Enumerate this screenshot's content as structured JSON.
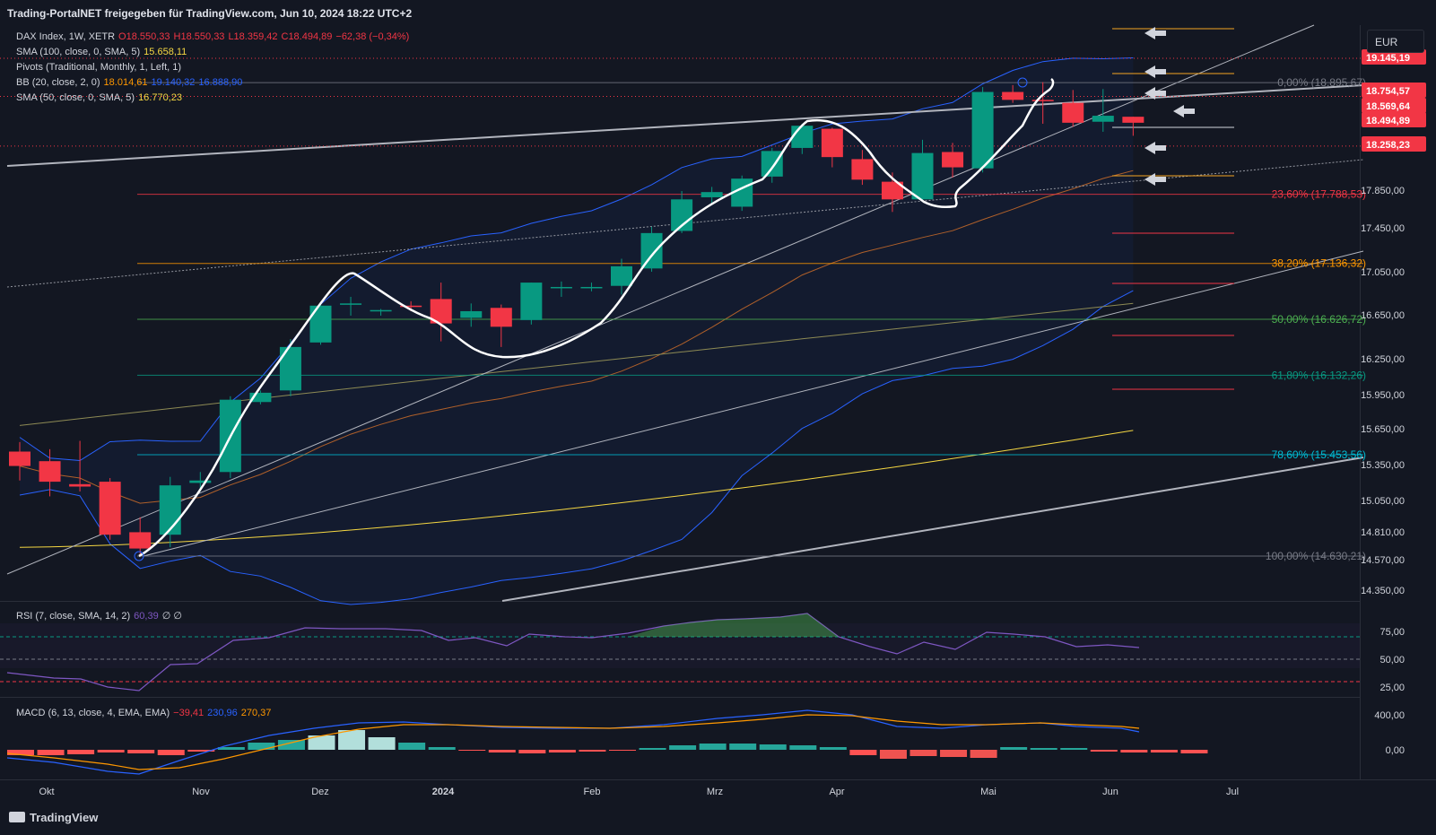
{
  "header": {
    "title": "Trading-PortalNET freigegeben für TradingView.com, Jun 10, 2024 18:22 UTC+2"
  },
  "currency": "EUR",
  "brand": "TradingView",
  "legend": {
    "main": {
      "name": "DAX Index, 1W, XETR",
      "o": "O18.550,33",
      "h": "H18.550,33",
      "l": "L18.359,42",
      "c": "C18.494,89",
      "chg": "−62,38 (−0,34%)"
    },
    "sma100": {
      "name": "SMA (100, close, 0, SMA, 5)",
      "value": "15.658,11"
    },
    "pivots": {
      "name": "Pivots (Traditional, Monthly, 1, Left, 1)"
    },
    "bb": {
      "name": "BB (20, close, 2, 0)",
      "v1": "18.014,61",
      "v2": "19.140,32",
      "v3": "16.888,90"
    },
    "sma50": {
      "name": "SMA (50, close, 0, SMA, 5)",
      "value": "16.770,23"
    }
  },
  "rsi_legend": {
    "name": "RSI (7, close, SMA, 14, 2)",
    "value": "60,39",
    "extra": "∅  ∅"
  },
  "macd_legend": {
    "name": "MACD (6, 13, close, 4, EMA, EMA)",
    "v1": "−39,41",
    "v2": "230,96",
    "v3": "270,37"
  },
  "colors": {
    "up": "#089981",
    "down": "#f23645",
    "bg": "#131722",
    "sma100": "#f5d742",
    "bb": "#2962ff",
    "sma50": "#f5d742",
    "fib": "#c9c9c9"
  },
  "chart_data": {
    "type": "candlestick",
    "x_axis": {
      "ticks": [
        "Okt",
        "Nov",
        "Dez",
        "2024",
        "Feb",
        "Mrz",
        "Apr",
        "Mai",
        "Jun",
        "Jul"
      ]
    },
    "y_axis": {
      "ticks": [
        "17.850,00",
        "17.450,00",
        "17.050,00",
        "16.650,00",
        "16.250,00",
        "15.950,00",
        "15.650,00",
        "15.350,00",
        "15.050,00",
        "14.810,00",
        "14.570,00",
        "14.350,00"
      ]
    },
    "price_labels": [
      {
        "value": 19145.19,
        "text": "19.145,19",
        "color": "#f23645"
      },
      {
        "value": 18754.57,
        "text": "18.754,57",
        "color": "#f23645"
      },
      {
        "value": 18569.64,
        "text": "18.569,64",
        "color": "#f23645"
      },
      {
        "value": 18494.89,
        "text": "18.494,89",
        "color": "#f23645"
      },
      {
        "value": 18258.23,
        "text": "18.258,23",
        "color": "#f23645"
      }
    ],
    "fib_levels": [
      {
        "value": 18895.67,
        "text": "0,00% (18.895,67)",
        "color": "#787b86"
      },
      {
        "value": 17788.53,
        "text": "23,60% (17.788,53)",
        "color": "#f23645"
      },
      {
        "value": 17136.32,
        "text": "38,20% (17.136,32)",
        "color": "#ff9800"
      },
      {
        "value": 16626.72,
        "text": "50,00% (16.626,72)",
        "color": "#4caf50"
      },
      {
        "value": 16132.26,
        "text": "61,80% (16.132,26)",
        "color": "#089981"
      },
      {
        "value": 15453.56,
        "text": "78,60% (15.453,56)",
        "color": "#00bcd4"
      },
      {
        "value": 14630.21,
        "text": "100,00% (14.630,21)",
        "color": "#787b86"
      }
    ],
    "candles": [
      {
        "t": "2023-09-25",
        "o": 15480,
        "h": 15560,
        "l": 15240,
        "c": 15360
      },
      {
        "t": "2023-10-02",
        "o": 15400,
        "h": 15500,
        "l": 15110,
        "c": 15230
      },
      {
        "t": "2023-10-09",
        "o": 15210,
        "h": 15570,
        "l": 15150,
        "c": 15190
      },
      {
        "t": "2023-10-16",
        "o": 15230,
        "h": 15260,
        "l": 14760,
        "c": 14800
      },
      {
        "t": "2023-10-23",
        "o": 14820,
        "h": 14940,
        "l": 14630,
        "c": 14690
      },
      {
        "t": "2023-10-30",
        "o": 14800,
        "h": 15270,
        "l": 14700,
        "c": 15200
      },
      {
        "t": "2023-11-06",
        "o": 15220,
        "h": 15310,
        "l": 15150,
        "c": 15240
      },
      {
        "t": "2023-11-13",
        "o": 15310,
        "h": 15950,
        "l": 15260,
        "c": 15920
      },
      {
        "t": "2023-11-20",
        "o": 15900,
        "h": 16000,
        "l": 15880,
        "c": 15980
      },
      {
        "t": "2023-11-27",
        "o": 16000,
        "h": 16450,
        "l": 15950,
        "c": 16380
      },
      {
        "t": "2023-12-04",
        "o": 16420,
        "h": 16760,
        "l": 16400,
        "c": 16750
      },
      {
        "t": "2023-12-11",
        "o": 16770,
        "h": 16830,
        "l": 16660,
        "c": 16770
      },
      {
        "t": "2023-12-18",
        "o": 16700,
        "h": 16720,
        "l": 16660,
        "c": 16710
      },
      {
        "t": "2023-12-25",
        "o": 16750,
        "h": 16790,
        "l": 16700,
        "c": 16740
      },
      {
        "t": "2024-01-01",
        "o": 16810,
        "h": 16960,
        "l": 16430,
        "c": 16590
      },
      {
        "t": "2024-01-08",
        "o": 16640,
        "h": 16770,
        "l": 16560,
        "c": 16700
      },
      {
        "t": "2024-01-15",
        "o": 16730,
        "h": 16760,
        "l": 16380,
        "c": 16560
      },
      {
        "t": "2024-01-22",
        "o": 16620,
        "h": 16960,
        "l": 16580,
        "c": 16960
      },
      {
        "t": "2024-01-29",
        "o": 16920,
        "h": 16970,
        "l": 16830,
        "c": 16920
      },
      {
        "t": "2024-02-05",
        "o": 16920,
        "h": 16960,
        "l": 16880,
        "c": 16920
      },
      {
        "t": "2024-02-12",
        "o": 16930,
        "h": 17180,
        "l": 16850,
        "c": 17110
      },
      {
        "t": "2024-02-19",
        "o": 17090,
        "h": 17480,
        "l": 17060,
        "c": 17420
      },
      {
        "t": "2024-02-26",
        "o": 17440,
        "h": 17820,
        "l": 17420,
        "c": 17740
      },
      {
        "t": "2024-03-04",
        "o": 17760,
        "h": 17860,
        "l": 17690,
        "c": 17810
      },
      {
        "t": "2024-03-11",
        "o": 17670,
        "h": 17970,
        "l": 17630,
        "c": 17940
      },
      {
        "t": "2024-03-18",
        "o": 17960,
        "h": 18240,
        "l": 17900,
        "c": 18210
      },
      {
        "t": "2024-03-25",
        "o": 18240,
        "h": 18480,
        "l": 18180,
        "c": 18460
      },
      {
        "t": "2024-04-01",
        "o": 18430,
        "h": 18440,
        "l": 18050,
        "c": 18150
      },
      {
        "t": "2024-04-08",
        "o": 18130,
        "h": 18220,
        "l": 17880,
        "c": 17930
      },
      {
        "t": "2024-04-15",
        "o": 17910,
        "h": 18000,
        "l": 17620,
        "c": 17740
      },
      {
        "t": "2024-04-22",
        "o": 17740,
        "h": 18320,
        "l": 17720,
        "c": 18190
      },
      {
        "t": "2024-04-29",
        "o": 18200,
        "h": 18290,
        "l": 17950,
        "c": 18050
      },
      {
        "t": "2024-05-06",
        "o": 18040,
        "h": 18850,
        "l": 18000,
        "c": 18800
      },
      {
        "t": "2024-05-13",
        "o": 18800,
        "h": 18870,
        "l": 18690,
        "c": 18720
      },
      {
        "t": "2024-05-20",
        "o": 18720,
        "h": 18900,
        "l": 18480,
        "c": 18710
      },
      {
        "t": "2024-05-27",
        "o": 18690,
        "h": 18820,
        "l": 18450,
        "c": 18490
      },
      {
        "t": "2024-06-03",
        "o": 18500,
        "h": 18830,
        "l": 18400,
        "c": 18560
      },
      {
        "t": "2024-06-10",
        "o": 18550,
        "h": 18550,
        "l": 18360,
        "c": 18490
      }
    ],
    "rsi": {
      "ticks": [
        "75,00",
        "50,00",
        "25,00"
      ],
      "levels": [
        70,
        50,
        30
      ]
    },
    "macd": {
      "ticks": [
        "400,00",
        "0,00"
      ]
    }
  }
}
